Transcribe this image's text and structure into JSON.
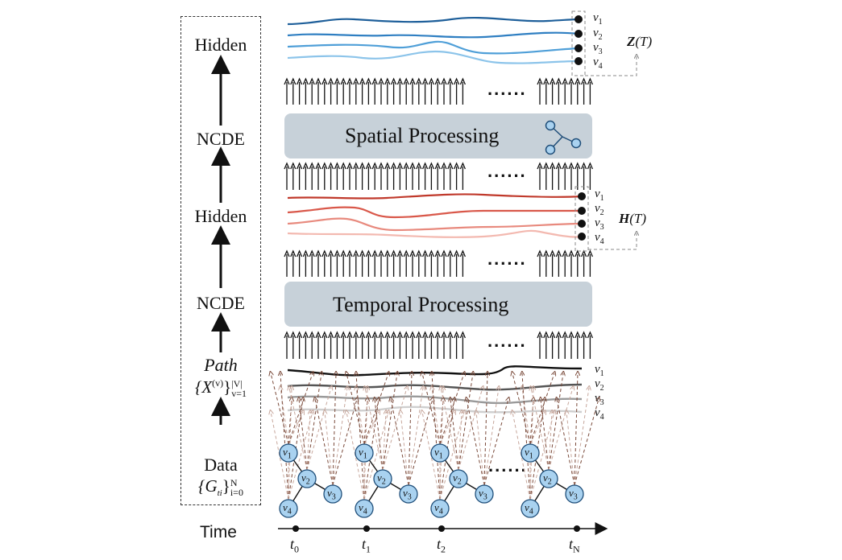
{
  "pipeline": {
    "stages": [
      {
        "id": "hidden-top",
        "label": "Hidden"
      },
      {
        "id": "ncde-top",
        "label": "NCDE"
      },
      {
        "id": "hidden-mid",
        "label": "Hidden"
      },
      {
        "id": "ncde-bottom",
        "label": "NCDE"
      },
      {
        "id": "path",
        "label": "Path",
        "sublabel_base": "{X",
        "sublabel_sup": "(v)",
        "sublabel_close": "}",
        "sublabel_range_sup": "|V|",
        "sublabel_range_sub": "v=1"
      },
      {
        "id": "data",
        "label": "Data",
        "sublabel_base": "{G",
        "sublabel_sub": "ti",
        "sublabel_close": "}",
        "sublabel_range_sup": "N",
        "sublabel_range_sub": "i=0"
      }
    ],
    "time_label": "Time"
  },
  "spatial": {
    "label": "Spatial Processing",
    "icon": "graph-icon"
  },
  "temporal": {
    "label": "Temporal Processing"
  },
  "vertices": [
    "v1",
    "v2",
    "v3",
    "v4"
  ],
  "outputs": {
    "z": {
      "label": "Z",
      "arg": "(T)"
    },
    "h": {
      "label": "H",
      "arg": "(T)"
    }
  },
  "ellipsis": "......",
  "time_ticks": [
    {
      "name": "t",
      "sub": "0"
    },
    {
      "name": "t",
      "sub": "1"
    },
    {
      "name": "t",
      "sub": "2"
    },
    {
      "name": "t",
      "sub": "N"
    }
  ],
  "colors": {
    "blue_series": [
      "#1e5f9a",
      "#2f7fc2",
      "#4f9fd8",
      "#8cc4ea"
    ],
    "red_series": [
      "#c0392b",
      "#d9584a",
      "#e88a7e",
      "#f3b9b0"
    ],
    "gray_series": [
      "#111111",
      "#555555",
      "#9a9a9a",
      "#cfcfcf"
    ],
    "node_fill": "#a9d2f0",
    "node_stroke": "#1f4e79",
    "box_fill": "#c7d1d9"
  }
}
